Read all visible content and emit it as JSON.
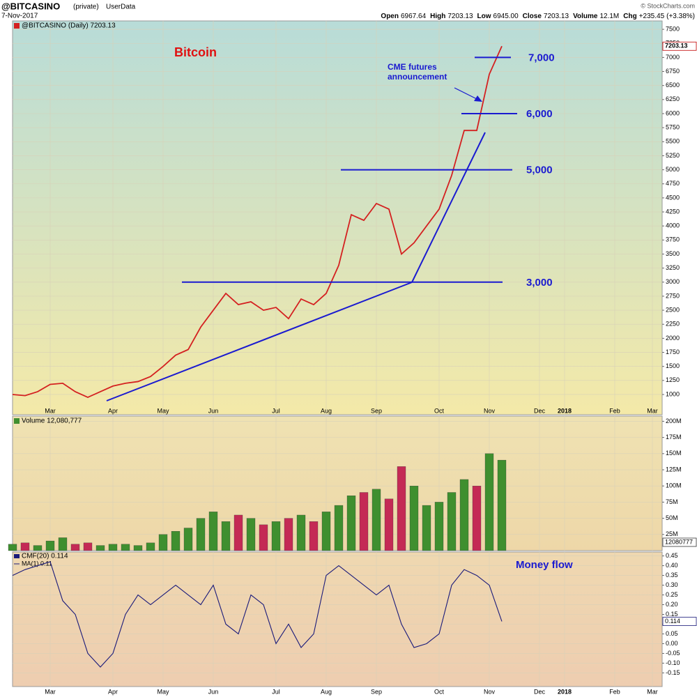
{
  "header": {
    "symbol": "@BITCASINO",
    "owner": "(private)",
    "source": "UserData",
    "date": "7-Nov-2017",
    "quote": [
      "Open",
      "6967.64",
      "High",
      "7203.13",
      "Low",
      "6945.00",
      "Close",
      "7203.13",
      "Volume",
      "12.1M",
      "Chg",
      "+235.45",
      "(+3.38%)"
    ],
    "copyright": "© StockCharts.com"
  },
  "chart_data": [
    {
      "type": "line",
      "title": "Bitcoin",
      "legend": "@BITCASINO (Daily) 7203.13",
      "last_label": "7203.13",
      "annotation": [
        "CME futures",
        "announcement"
      ],
      "levels": [
        {
          "value": 7000,
          "label": "7,000"
        },
        {
          "value": 6000,
          "label": "6,000"
        },
        {
          "value": 5000,
          "label": "5,000"
        },
        {
          "value": 3000,
          "label": "3,000"
        }
      ],
      "categories": [
        null,
        null,
        null,
        "Mar",
        null,
        null,
        null,
        null,
        "Apr",
        null,
        null,
        null,
        "May",
        null,
        null,
        null,
        "Jun",
        null,
        null,
        null,
        null,
        "Jul",
        null,
        null,
        null,
        "Aug",
        null,
        null,
        null,
        "Sep",
        null,
        null,
        null,
        null,
        "Oct",
        null,
        null,
        null,
        "Nov",
        null,
        null,
        null,
        "Dec",
        null,
        "2018",
        null,
        null,
        null,
        "Feb",
        null,
        null,
        "Mar"
      ],
      "series": [
        {
          "name": "@BITCASINO",
          "color": "#d42020",
          "values": [
            1000,
            980,
            1050,
            1180,
            1200,
            1050,
            950,
            1050,
            1150,
            1200,
            1230,
            1320,
            1500,
            1700,
            1800,
            2200,
            2500,
            2800,
            2600,
            2650,
            2500,
            2550,
            2350,
            2700,
            2600,
            2800,
            3300,
            4200,
            4100,
            4400,
            4300,
            3500,
            3700,
            4000,
            4300,
            4900,
            5700,
            5700,
            6700,
            7200,
            null,
            null,
            null,
            null,
            null,
            null,
            null,
            null,
            null,
            null,
            null,
            null
          ]
        }
      ],
      "ylim": [
        640,
        7650
      ],
      "yticks": [
        1000,
        1250,
        1500,
        1750,
        2000,
        2250,
        2500,
        2750,
        3000,
        3250,
        3500,
        3750,
        4000,
        4250,
        4500,
        4750,
        5000,
        5250,
        5500,
        5750,
        6000,
        6250,
        6500,
        6750,
        7000,
        7250,
        7500
      ],
      "grid": true
    },
    {
      "type": "bar",
      "legend": "Volume 12,080,777",
      "last_label": "12080777",
      "series": [
        {
          "name": "Volume",
          "values": [
            10,
            12,
            8,
            15,
            20,
            10,
            12,
            8,
            10,
            10,
            8,
            12,
            25,
            30,
            35,
            50,
            60,
            45,
            55,
            50,
            40,
            45,
            50,
            55,
            45,
            60,
            70,
            85,
            90,
            95,
            80,
            130,
            100,
            70,
            75,
            90,
            110,
            100,
            150,
            140,
            null,
            null,
            null,
            null,
            null,
            null,
            null,
            null,
            null,
            null,
            null,
            null
          ],
          "colors": [
            "#3f8f2f",
            "#c42a55",
            "#3f8f2f",
            "#3f8f2f",
            "#3f8f2f",
            "#c42a55",
            "#c42a55",
            "#3f8f2f",
            "#3f8f2f",
            "#3f8f2f",
            "#3f8f2f",
            "#3f8f2f",
            "#3f8f2f",
            "#3f8f2f",
            "#3f8f2f",
            "#3f8f2f",
            "#3f8f2f",
            "#3f8f2f",
            "#c42a55",
            "#3f8f2f",
            "#c42a55",
            "#3f8f2f",
            "#c42a55",
            "#3f8f2f",
            "#c42a55",
            "#3f8f2f",
            "#3f8f2f",
            "#3f8f2f",
            "#c42a55",
            "#3f8f2f",
            "#c42a55",
            "#c42a55",
            "#3f8f2f",
            "#3f8f2f",
            "#3f8f2f",
            "#3f8f2f",
            "#3f8f2f",
            "#c42a55",
            "#3f8f2f",
            "#3f8f2f",
            null,
            null,
            null,
            null,
            null,
            null,
            null,
            null,
            null,
            null,
            null,
            null
          ]
        }
      ],
      "ylim": [
        0,
        208
      ],
      "yticks": [
        {
          "value": 25,
          "label": "25M"
        },
        {
          "value": 50,
          "label": "50M"
        },
        {
          "value": 75,
          "label": "75M"
        },
        {
          "value": 100,
          "label": "100M"
        },
        {
          "value": 125,
          "label": "125M"
        },
        {
          "value": 150,
          "label": "150M"
        },
        {
          "value": 175,
          "label": "175M"
        },
        {
          "value": 200,
          "label": "200M"
        }
      ],
      "grid": true
    },
    {
      "type": "line",
      "title": "Money flow",
      "last_label": "0.114",
      "series": [
        {
          "name": "CMF(20) 0.114",
          "color": "#1a1a7a",
          "values": [
            0.35,
            0.38,
            0.4,
            0.42,
            0.22,
            0.15,
            -0.05,
            -0.12,
            -0.05,
            0.15,
            0.25,
            0.2,
            0.25,
            0.3,
            0.25,
            0.2,
            0.3,
            0.1,
            0.05,
            0.25,
            0.2,
            0.0,
            0.1,
            -0.02,
            0.05,
            0.35,
            0.4,
            0.35,
            0.3,
            0.25,
            0.3,
            0.1,
            -0.02,
            0.0,
            0.05,
            0.3,
            0.38,
            0.35,
            0.3,
            0.114,
            null,
            null,
            null,
            null,
            null,
            null,
            null,
            null,
            null,
            null,
            null,
            null
          ]
        },
        {
          "name": "MA(1) 0.11",
          "color": "#1a1a7a"
        }
      ],
      "ylim": [
        -0.22,
        0.47
      ],
      "yticks": [
        0.45,
        {
          "value": 0.4,
          "label": "0.40"
        },
        0.35,
        {
          "value": 0.3,
          "label": "0.30"
        },
        0.25,
        {
          "value": 0.2,
          "label": "0.20"
        },
        0.15,
        {
          "value": 0.1,
          "label": "0.10"
        },
        0.05,
        {
          "value": 0,
          "label": "0.00"
        },
        -0.05,
        {
          "value": -0.1,
          "label": "-0.10"
        },
        -0.15
      ],
      "grid": true
    }
  ]
}
